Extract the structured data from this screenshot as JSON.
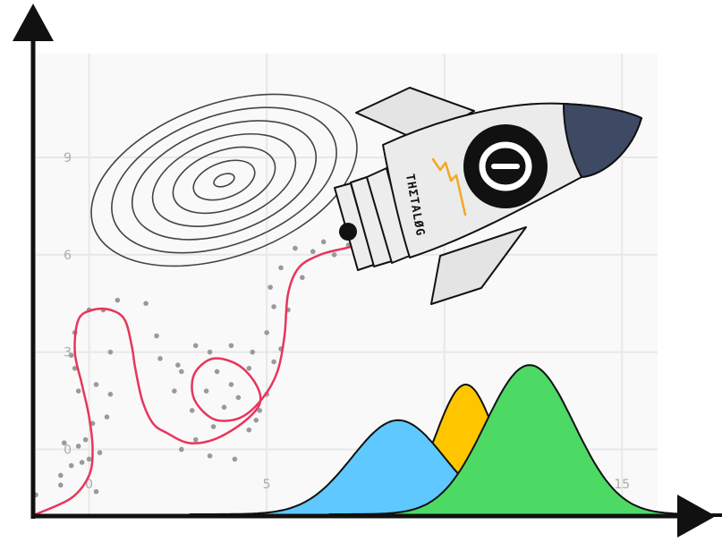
{
  "chart_data": {
    "type": "scatter",
    "title": "",
    "xlabel": "",
    "ylabel": "",
    "x_ticks": [
      "0",
      "5",
      "15"
    ],
    "y_ticks": [
      "0",
      "3",
      "6",
      "9"
    ],
    "xlim": [
      -1.5,
      16
    ],
    "ylim": [
      -2,
      12.2
    ],
    "grid": true,
    "scatter_points": [
      [
        -1.5,
        -1.4
      ],
      [
        -0.8,
        -0.8
      ],
      [
        -0.8,
        -1.1
      ],
      [
        -0.7,
        0.2
      ],
      [
        -0.5,
        -0.5
      ],
      [
        -0.3,
        0.1
      ],
      [
        -0.2,
        -0.4
      ],
      [
        -0.1,
        0.3
      ],
      [
        0.0,
        -0.3
      ],
      [
        0.2,
        -1.3
      ],
      [
        0.3,
        -0.1
      ],
      [
        0.5,
        1.0
      ],
      [
        0.6,
        1.7
      ],
      [
        0.2,
        2.0
      ],
      [
        0.1,
        0.8
      ],
      [
        -0.3,
        1.8
      ],
      [
        -0.4,
        2.5
      ],
      [
        -0.5,
        2.9
      ],
      [
        -0.4,
        3.6
      ],
      [
        0.0,
        4.3
      ],
      [
        0.4,
        4.3
      ],
      [
        0.6,
        3.0
      ],
      [
        0.8,
        4.6
      ],
      [
        1.6,
        4.5
      ],
      [
        1.9,
        3.5
      ],
      [
        2.0,
        2.8
      ],
      [
        2.4,
        1.8
      ],
      [
        2.6,
        2.4
      ],
      [
        2.9,
        1.2
      ],
      [
        3.0,
        0.3
      ],
      [
        3.3,
        1.8
      ],
      [
        3.5,
        0.7
      ],
      [
        3.8,
        1.3
      ],
      [
        4.0,
        2.0
      ],
      [
        4.2,
        1.6
      ],
      [
        4.5,
        2.5
      ],
      [
        4.8,
        1.2
      ],
      [
        5.0,
        1.7
      ],
      [
        5.2,
        2.7
      ],
      [
        5.4,
        3.1
      ],
      [
        5.6,
        4.3
      ],
      [
        5.2,
        4.4
      ],
      [
        5.0,
        3.6
      ],
      [
        4.6,
        3.0
      ],
      [
        4.0,
        3.2
      ],
      [
        3.4,
        3.0
      ],
      [
        3.0,
        3.2
      ],
      [
        2.5,
        2.6
      ],
      [
        4.5,
        0.6
      ],
      [
        5.1,
        5.0
      ],
      [
        5.4,
        5.6
      ],
      [
        6.0,
        5.3
      ],
      [
        6.3,
        6.1
      ],
      [
        6.6,
        6.4
      ],
      [
        6.9,
        6.0
      ],
      [
        7.1,
        6.7
      ],
      [
        7.3,
        6.3
      ],
      [
        7.6,
        5.8
      ],
      [
        5.8,
        6.2
      ],
      [
        3.4,
        -0.2
      ],
      [
        4.1,
        -0.3
      ],
      [
        2.6,
        0.0
      ],
      [
        4.7,
        0.9
      ],
      [
        3.6,
        2.4
      ]
    ],
    "path_curve": [
      [
        -1.5,
        -2.0
      ],
      [
        -0.5,
        -1.5
      ],
      [
        0.0,
        -0.8
      ],
      [
        0.1,
        0.0
      ],
      [
        0.0,
        1.0
      ],
      [
        -0.2,
        2.0
      ],
      [
        -0.4,
        3.0
      ],
      [
        -0.3,
        4.0
      ],
      [
        0.1,
        4.3
      ],
      [
        0.6,
        4.3
      ],
      [
        1.0,
        4.0
      ],
      [
        1.2,
        3.2
      ],
      [
        1.3,
        2.5
      ],
      [
        1.5,
        1.5
      ],
      [
        1.8,
        0.8
      ],
      [
        2.2,
        0.5
      ],
      [
        2.8,
        0.2
      ],
      [
        3.5,
        0.3
      ],
      [
        4.3,
        0.8
      ],
      [
        4.8,
        1.4
      ],
      [
        4.7,
        2.0
      ],
      [
        4.2,
        2.6
      ],
      [
        3.5,
        2.8
      ],
      [
        3.0,
        2.4
      ],
      [
        2.9,
        1.8
      ],
      [
        3.1,
        1.3
      ],
      [
        3.6,
        0.9
      ],
      [
        4.3,
        1.0
      ],
      [
        4.9,
        1.6
      ],
      [
        5.3,
        2.4
      ],
      [
        5.5,
        3.5
      ],
      [
        5.6,
        4.8
      ],
      [
        5.9,
        5.6
      ],
      [
        6.5,
        6.0
      ],
      [
        7.2,
        6.2
      ],
      [
        7.6,
        6.3
      ]
    ],
    "series": [
      {
        "type": "density",
        "color": "#5ec8ff",
        "mean": 8.7,
        "sd": 1.3,
        "peak": 2.9
      },
      {
        "type": "density",
        "color": "#ffc600",
        "mean": 10.6,
        "sd": 0.85,
        "peak": 4.0
      },
      {
        "type": "density",
        "color": "#4cd964",
        "mean": 12.4,
        "sd": 1.25,
        "peak": 4.6
      }
    ],
    "contour": {
      "center": [
        3.8,
        8.3
      ],
      "radii_x": [
        0.3,
        0.9,
        1.5,
        2.1,
        2.7,
        3.3,
        3.9
      ],
      "ratio": 0.55,
      "rotation_deg": -20
    }
  },
  "logo": {
    "wordmark": "THΣTALØG",
    "badge_glyph": "θ",
    "colors": {
      "body": "#ebebeb",
      "nose": "#3e4a64",
      "badge": "#111111",
      "zigzag": "#f5a623"
    }
  },
  "colors": {
    "axis": "#111111",
    "grid": "#e8e8e8",
    "plot_bg": "#f9f9f9",
    "curve": "#e8355a",
    "dots": "#9a9a9a",
    "contour": "#444444"
  }
}
